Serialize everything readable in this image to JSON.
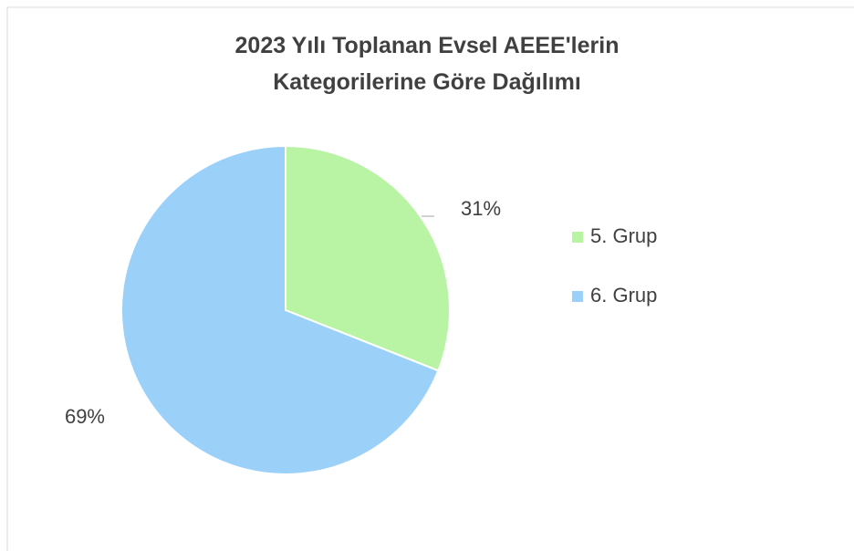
{
  "chart_data": {
    "type": "pie",
    "title": "2023 Yılı Toplanan Evsel AEEE'lerin Kategorilerine Göre Dağılımı",
    "categories": [
      "5. Grup",
      "6. Grup"
    ],
    "values": [
      31,
      69
    ],
    "value_labels": [
      "31%",
      "69%"
    ],
    "colors": [
      "#b9f3a4",
      "#9bd1f9"
    ],
    "legend": "right"
  }
}
